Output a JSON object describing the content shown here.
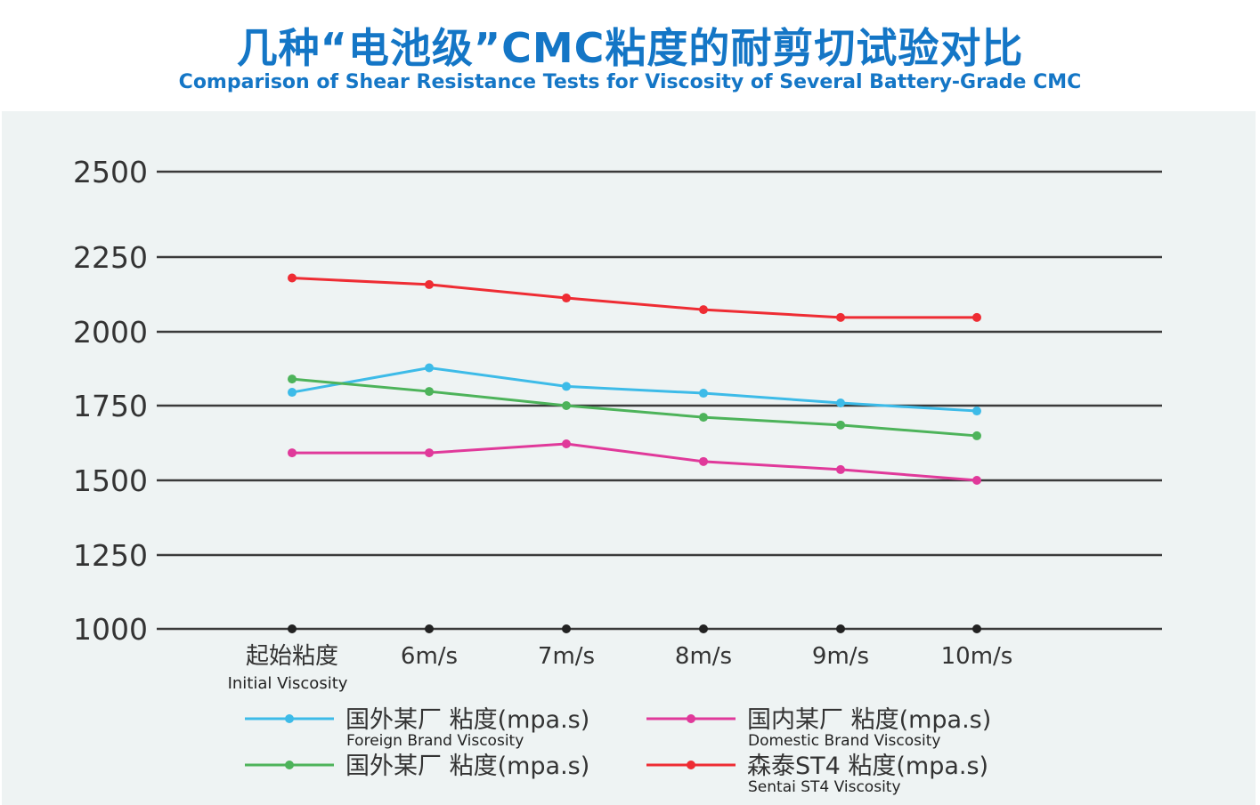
{
  "title": "几种“电池级”CMC粘度的耐剪切试验对比",
  "subtitle": "Comparison of Shear Resistance Tests for Viscosity of Several Battery-Grade CMC",
  "chart_data": {
    "type": "line",
    "categories": [
      "起始粘度",
      "6m/s",
      "7m/s",
      "8m/s",
      "9m/s",
      "10m/s"
    ],
    "category_sub": [
      "Initial Viscosity",
      "",
      "",
      "",
      "",
      ""
    ],
    "yticks": [
      1000,
      1250,
      1500,
      1750,
      2000,
      2250,
      2500
    ],
    "ylim": [
      1000,
      2500
    ],
    "grid": true,
    "legend_position": "bottom",
    "series": [
      {
        "name": "国外某厂  粘度(mpa.s)",
        "subname": "Foreign Brand Viscosity",
        "color": "#3dbbe8",
        "values": [
          1795,
          1878,
          1815,
          1792,
          1759,
          1732
        ]
      },
      {
        "name": "国外某厂  粘度(mpa.s)",
        "subname": "",
        "color": "#4db35a",
        "values": [
          1840,
          1798,
          1750,
          1711,
          1685,
          1649
        ]
      },
      {
        "name": "国内某厂  粘度(mpa.s)",
        "subname": "Domestic Brand Viscosity",
        "color": "#e0399a",
        "values": [
          1592,
          1592,
          1622,
          1563,
          1536,
          1500
        ]
      },
      {
        "name": "森泰ST4  粘度(mpa.s)",
        "subname": "Sentai ST4 Viscosity",
        "color": "#ee2c33",
        "values": [
          2180,
          2158,
          2113,
          2074,
          2048,
          2048
        ]
      }
    ]
  }
}
